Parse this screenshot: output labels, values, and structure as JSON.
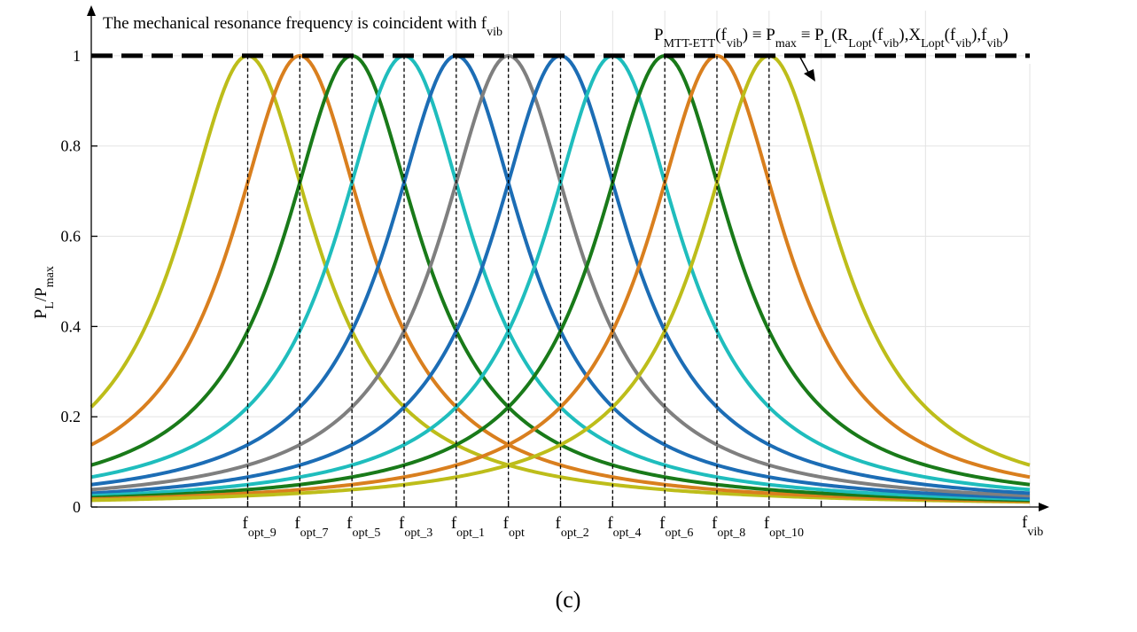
{
  "chart_data": {
    "type": "line",
    "title": "The mechanical resonance frequency is coincident with f_vib",
    "annotation": "P_MTT-ETT(f_vib) ≡ P_max ≡ P_L(R_Lopt(f_vib),X_Lopt(f_vib),f_vib)",
    "xlabel": "f_vib",
    "ylabel": "P_L/P_max",
    "caption": "(c)",
    "xlim": [
      0,
      18
    ],
    "ylim": [
      0,
      1.1
    ],
    "y_ticks": [
      "0",
      "0.2",
      "0.4",
      "0.6",
      "0.8",
      "1"
    ],
    "y_tick_values": [
      0,
      0.2,
      0.4,
      0.6,
      0.8,
      1
    ],
    "x_tick_values": [
      3,
      4,
      5,
      6,
      7,
      8,
      9,
      10,
      11,
      12,
      13,
      14,
      16
    ],
    "grid": true,
    "max_line": {
      "y": 1,
      "style": "dashed",
      "color": "#000000"
    },
    "series": [
      {
        "name": "f_opt_9",
        "peak": 3,
        "color": "#BDBD1A",
        "label": {
          "base": "f",
          "sub": "opt_9"
        }
      },
      {
        "name": "f_opt_7",
        "peak": 4,
        "color": "#D97F1E",
        "label": {
          "base": "f",
          "sub": "opt_7"
        }
      },
      {
        "name": "f_opt_5",
        "peak": 5,
        "color": "#197A19",
        "label": {
          "base": "f",
          "sub": "opt_5"
        }
      },
      {
        "name": "f_opt_3",
        "peak": 6,
        "color": "#1FBDBD",
        "label": {
          "base": "f",
          "sub": "opt_3"
        }
      },
      {
        "name": "f_opt_1",
        "peak": 7,
        "color": "#1C6DB5",
        "label": {
          "base": "f",
          "sub": "opt_1"
        }
      },
      {
        "name": "f_opt",
        "peak": 8,
        "color": "#7F7F7F",
        "label": {
          "base": "f",
          "sub": "opt"
        }
      },
      {
        "name": "f_opt_2",
        "peak": 9,
        "color": "#1C6DB5",
        "label": {
          "base": "f",
          "sub": "opt_2"
        }
      },
      {
        "name": "f_opt_4",
        "peak": 10,
        "color": "#1FBDBD",
        "label": {
          "base": "f",
          "sub": "opt_4"
        }
      },
      {
        "name": "f_opt_6",
        "peak": 11,
        "color": "#197A19",
        "label": {
          "base": "f",
          "sub": "opt_6"
        }
      },
      {
        "name": "f_opt_8",
        "peak": 12,
        "color": "#D97F1E",
        "label": {
          "base": "f",
          "sub": "opt_8"
        }
      },
      {
        "name": "f_opt_10",
        "peak": 13,
        "color": "#BDBD1A",
        "label": {
          "base": "f",
          "sub": "opt_10"
        }
      }
    ],
    "curve_model": {
      "formula": "1 / (1 + ((f - peak) / width)^2)",
      "width": 1.6
    }
  }
}
